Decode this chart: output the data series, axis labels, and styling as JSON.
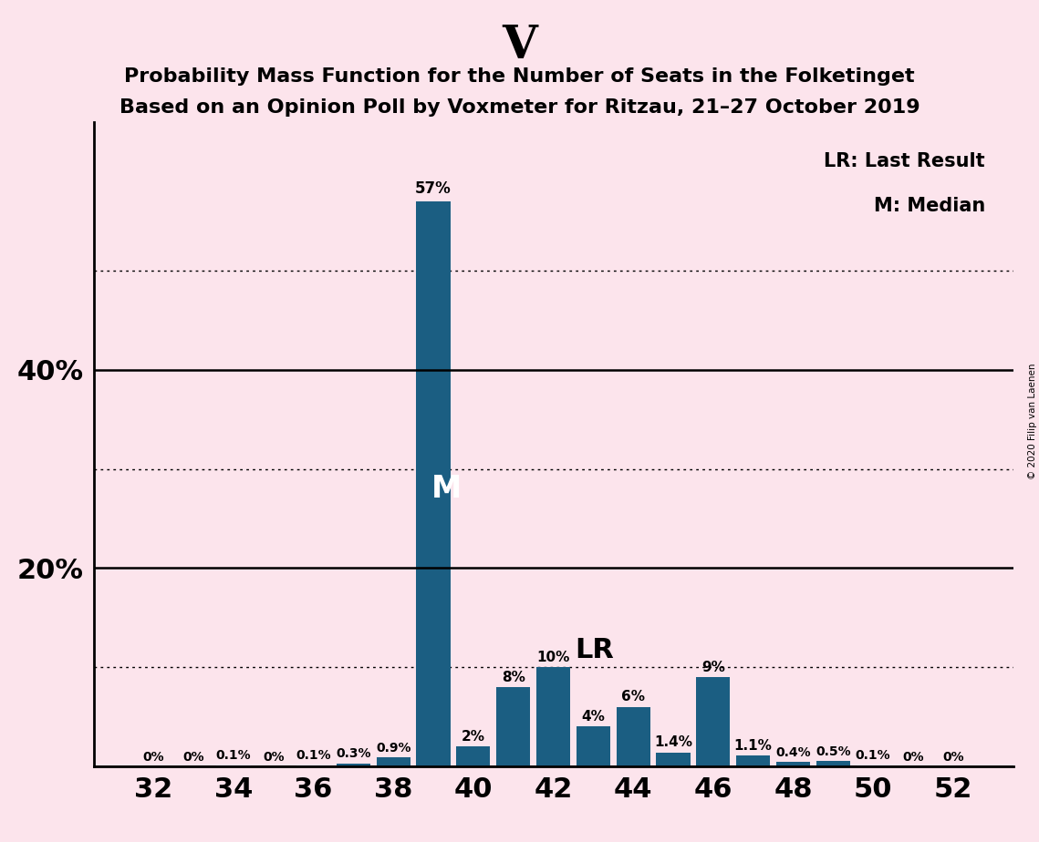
{
  "title_main": "V",
  "title_line1": "Probability Mass Function for the Number of Seats in the Folketinget",
  "title_line2": "Based on an Opinion Poll by Voxmeter for Ritzau, 21–27 October 2019",
  "copyright_text": "© 2020 Filip van Laenen",
  "legend_lr": "LR: Last Result",
  "legend_m": "M: Median",
  "background_color": "#fce4ec",
  "bar_color": "#1b5e82",
  "seats": [
    32,
    33,
    34,
    35,
    36,
    37,
    38,
    39,
    40,
    41,
    42,
    43,
    44,
    45,
    46,
    47,
    48,
    49,
    50,
    51,
    52
  ],
  "probabilities": [
    0.0,
    0.0,
    0.1,
    0.0,
    0.1,
    0.3,
    0.9,
    57.0,
    2.0,
    8.0,
    10.0,
    4.0,
    6.0,
    1.4,
    9.0,
    1.1,
    0.4,
    0.5,
    0.1,
    0.0,
    0.0
  ],
  "label_values": [
    "0%",
    "0%",
    "0.1%",
    "0%",
    "0.1%",
    "0.3%",
    "0.9%",
    "57%",
    "2%",
    "8%",
    "10%",
    "4%",
    "6%",
    "1.4%",
    "9%",
    "1.1%",
    "0.4%",
    "0.5%",
    "0.1%",
    "0%",
    "0%"
  ],
  "median_seat": 39,
  "lr_seat": 42,
  "ylim": [
    0,
    65
  ],
  "solid_ytick_values": [
    0,
    20,
    40
  ],
  "dotted_ytick_values": [
    10,
    30,
    50
  ],
  "labeled_yticks": [
    20,
    40
  ],
  "xtick_positions": [
    32,
    34,
    36,
    38,
    40,
    42,
    44,
    46,
    48,
    50,
    52
  ],
  "xlim": [
    30.5,
    53.5
  ]
}
